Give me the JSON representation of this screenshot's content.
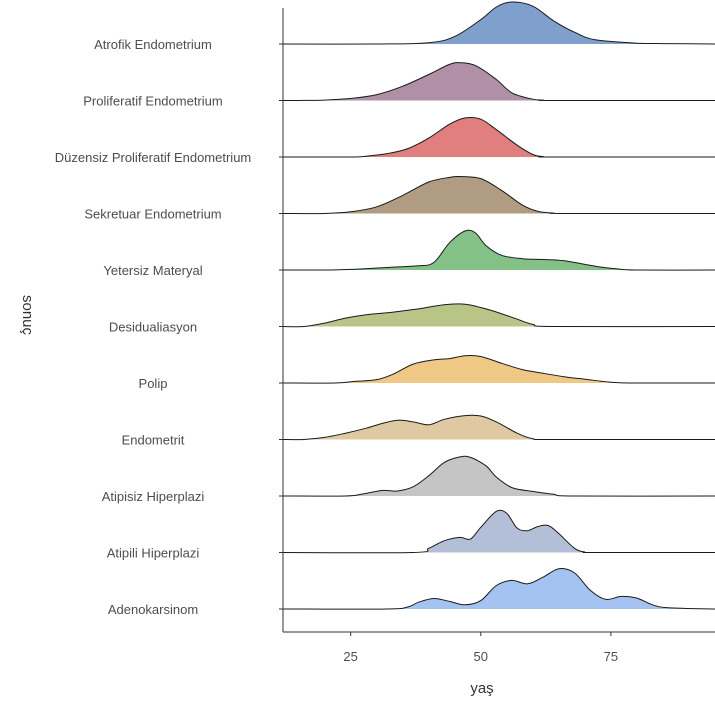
{
  "chart_data": {
    "type": "ridgeline",
    "xlabel": "yaş",
    "ylabel": "sonuç",
    "xlim": [
      12,
      95
    ],
    "x_ticks": [
      25,
      50,
      75
    ],
    "x_tick_labels": [
      "25",
      "50",
      "75"
    ],
    "grid": false,
    "legend": "none",
    "categories": [
      "Atrofik Endometrium",
      "Proliferatif Endometrium",
      "Düzensiz Proliferatif Endometrium",
      "Sekretuar Endometrium",
      "Yetersiz Materyal",
      "Desidualiasyon",
      "Polip",
      "Endometrit",
      "Atipisiz Hiperplazi",
      "Atipili Hiperplazi",
      "Adenokarsinom"
    ],
    "series": [
      {
        "color": "#7f9fcd",
        "points": [
          [
            12,
            0
          ],
          [
            30,
            0
          ],
          [
            40,
            0.03
          ],
          [
            45,
            0.18
          ],
          [
            50,
            0.58
          ],
          [
            53,
            0.88
          ],
          [
            56,
            1.0
          ],
          [
            60,
            0.9
          ],
          [
            64,
            0.55
          ],
          [
            68,
            0.28
          ],
          [
            72,
            0.1
          ],
          [
            80,
            0.02
          ],
          [
            85,
            0.01
          ],
          [
            95,
            0
          ]
        ]
      },
      {
        "color": "#b090a6",
        "points": [
          [
            12,
            0
          ],
          [
            15,
            0
          ],
          [
            20,
            0.01
          ],
          [
            25,
            0.05
          ],
          [
            30,
            0.14
          ],
          [
            35,
            0.34
          ],
          [
            40,
            0.62
          ],
          [
            44,
            0.86
          ],
          [
            46,
            0.9
          ],
          [
            49,
            0.83
          ],
          [
            53,
            0.5
          ],
          [
            56,
            0.18
          ],
          [
            60,
            0.03
          ],
          [
            62,
            0.01
          ],
          [
            64,
            0
          ],
          [
            95,
            0
          ]
        ]
      },
      {
        "color": "#e07f7e",
        "points": [
          [
            12,
            0
          ],
          [
            25,
            0
          ],
          [
            28,
            0.02
          ],
          [
            32,
            0.08
          ],
          [
            36,
            0.2
          ],
          [
            40,
            0.45
          ],
          [
            44,
            0.78
          ],
          [
            47,
            0.93
          ],
          [
            50,
            0.9
          ],
          [
            53,
            0.65
          ],
          [
            57,
            0.28
          ],
          [
            60,
            0.06
          ],
          [
            62,
            0.01
          ],
          [
            64,
            0
          ],
          [
            95,
            0
          ]
        ]
      },
      {
        "color": "#b09c82",
        "points": [
          [
            12,
            0
          ],
          [
            20,
            0
          ],
          [
            25,
            0.04
          ],
          [
            30,
            0.16
          ],
          [
            35,
            0.43
          ],
          [
            40,
            0.75
          ],
          [
            44,
            0.86
          ],
          [
            46,
            0.88
          ],
          [
            50,
            0.83
          ],
          [
            54,
            0.55
          ],
          [
            58,
            0.2
          ],
          [
            61,
            0.05
          ],
          [
            64,
            0.01
          ],
          [
            66,
            0
          ],
          [
            95,
            0
          ]
        ]
      },
      {
        "color": "#83c186",
        "points": [
          [
            12,
            0
          ],
          [
            20,
            0
          ],
          [
            26,
            0.02
          ],
          [
            32,
            0.06
          ],
          [
            38,
            0.1
          ],
          [
            41,
            0.18
          ],
          [
            44,
            0.65
          ],
          [
            47,
            0.93
          ],
          [
            49,
            0.88
          ],
          [
            51,
            0.58
          ],
          [
            54,
            0.35
          ],
          [
            58,
            0.27
          ],
          [
            62,
            0.25
          ],
          [
            66,
            0.22
          ],
          [
            72,
            0.09
          ],
          [
            76,
            0.03
          ],
          [
            80,
            0
          ],
          [
            95,
            0
          ]
        ]
      },
      {
        "color": "#b8c586",
        "points": [
          [
            12,
            0
          ],
          [
            16,
            0
          ],
          [
            20,
            0.08
          ],
          [
            24,
            0.2
          ],
          [
            28,
            0.28
          ],
          [
            33,
            0.34
          ],
          [
            38,
            0.42
          ],
          [
            43,
            0.52
          ],
          [
            47,
            0.53
          ],
          [
            51,
            0.42
          ],
          [
            56,
            0.22
          ],
          [
            60,
            0.05
          ],
          [
            64,
            0
          ],
          [
            95,
            0
          ]
        ]
      },
      {
        "color": "#f0c886",
        "points": [
          [
            12,
            0
          ],
          [
            22,
            0
          ],
          [
            26,
            0.04
          ],
          [
            30,
            0.08
          ],
          [
            33,
            0.2
          ],
          [
            37,
            0.45
          ],
          [
            41,
            0.55
          ],
          [
            44,
            0.58
          ],
          [
            47,
            0.65
          ],
          [
            50,
            0.63
          ],
          [
            54,
            0.47
          ],
          [
            58,
            0.32
          ],
          [
            62,
            0.23
          ],
          [
            66,
            0.15
          ],
          [
            70,
            0.09
          ],
          [
            75,
            0.02
          ],
          [
            80,
            0
          ],
          [
            95,
            0
          ]
        ]
      },
      {
        "color": "#dfc9a2",
        "points": [
          [
            12,
            0
          ],
          [
            16,
            0
          ],
          [
            20,
            0.05
          ],
          [
            24,
            0.15
          ],
          [
            28,
            0.27
          ],
          [
            31,
            0.38
          ],
          [
            34,
            0.46
          ],
          [
            37,
            0.42
          ],
          [
            40,
            0.35
          ],
          [
            43,
            0.48
          ],
          [
            47,
            0.57
          ],
          [
            50,
            0.56
          ],
          [
            53,
            0.42
          ],
          [
            57,
            0.15
          ],
          [
            60,
            0.02
          ],
          [
            64,
            0
          ],
          [
            95,
            0
          ]
        ]
      },
      {
        "color": "#c5c5c5",
        "points": [
          [
            12,
            0
          ],
          [
            24,
            0
          ],
          [
            27,
            0.04
          ],
          [
            31,
            0.13
          ],
          [
            34,
            0.12
          ],
          [
            37,
            0.22
          ],
          [
            40,
            0.48
          ],
          [
            43,
            0.8
          ],
          [
            46,
            0.93
          ],
          [
            48,
            0.92
          ],
          [
            51,
            0.72
          ],
          [
            53,
            0.45
          ],
          [
            56,
            0.2
          ],
          [
            60,
            0.11
          ],
          [
            64,
            0.04
          ],
          [
            68,
            0
          ],
          [
            95,
            0
          ]
        ]
      },
      {
        "color": "#b2bfd6",
        "points": [
          [
            12,
            0
          ],
          [
            37,
            0
          ],
          [
            40,
            0.1
          ],
          [
            43,
            0.28
          ],
          [
            46,
            0.36
          ],
          [
            48,
            0.32
          ],
          [
            50,
            0.6
          ],
          [
            53,
            0.98
          ],
          [
            55,
            0.93
          ],
          [
            57,
            0.58
          ],
          [
            59,
            0.52
          ],
          [
            61,
            0.62
          ],
          [
            63,
            0.64
          ],
          [
            65,
            0.45
          ],
          [
            68,
            0.1
          ],
          [
            70,
            0.01
          ],
          [
            72,
            0
          ],
          [
            95,
            0
          ]
        ]
      },
      {
        "color": "#a4c3f0",
        "points": [
          [
            12,
            0
          ],
          [
            32,
            0
          ],
          [
            36,
            0.05
          ],
          [
            38,
            0.16
          ],
          [
            41,
            0.25
          ],
          [
            44,
            0.18
          ],
          [
            47,
            0.1
          ],
          [
            50,
            0.2
          ],
          [
            53,
            0.56
          ],
          [
            56,
            0.68
          ],
          [
            59,
            0.6
          ],
          [
            62,
            0.76
          ],
          [
            65,
            0.96
          ],
          [
            68,
            0.86
          ],
          [
            71,
            0.45
          ],
          [
            74,
            0.23
          ],
          [
            77,
            0.3
          ],
          [
            80,
            0.26
          ],
          [
            83,
            0.1
          ],
          [
            86,
            0.03
          ],
          [
            95,
            0
          ]
        ]
      }
    ]
  }
}
